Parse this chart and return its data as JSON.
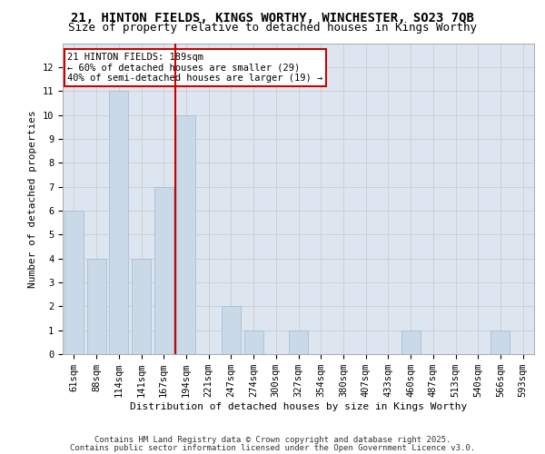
{
  "title1": "21, HINTON FIELDS, KINGS WORTHY, WINCHESTER, SO23 7QB",
  "title2": "Size of property relative to detached houses in Kings Worthy",
  "xlabel": "Distribution of detached houses by size in Kings Worthy",
  "ylabel": "Number of detached properties",
  "categories": [
    "61sqm",
    "88sqm",
    "114sqm",
    "141sqm",
    "167sqm",
    "194sqm",
    "221sqm",
    "247sqm",
    "274sqm",
    "300sqm",
    "327sqm",
    "354sqm",
    "380sqm",
    "407sqm",
    "433sqm",
    "460sqm",
    "487sqm",
    "513sqm",
    "540sqm",
    "566sqm",
    "593sqm"
  ],
  "values": [
    6,
    4,
    11,
    4,
    7,
    10,
    0,
    2,
    1,
    0,
    1,
    0,
    0,
    0,
    0,
    1,
    0,
    0,
    0,
    1,
    0
  ],
  "bar_color": "#c9d9e8",
  "bar_edge_color": "#a0b8cc",
  "vline_x": 4.5,
  "vline_color": "#cc0000",
  "annotation_line1": "21 HINTON FIELDS: 189sqm",
  "annotation_line2": "← 60% of detached houses are smaller (29)",
  "annotation_line3": "40% of semi-detached houses are larger (19) →",
  "annotation_box_color": "#cc0000",
  "ylim": [
    0,
    13
  ],
  "yticks": [
    0,
    1,
    2,
    3,
    4,
    5,
    6,
    7,
    8,
    9,
    10,
    11,
    12
  ],
  "grid_color": "#cccccc",
  "bg_color": "#dde6f0",
  "footer_line1": "Contains HM Land Registry data © Crown copyright and database right 2025.",
  "footer_line2": "Contains public sector information licensed under the Open Government Licence v3.0.",
  "title_fontsize": 10,
  "subtitle_fontsize": 9,
  "axis_label_fontsize": 8,
  "tick_fontsize": 7.5,
  "annotation_fontsize": 7.5,
  "footer_fontsize": 6.5
}
